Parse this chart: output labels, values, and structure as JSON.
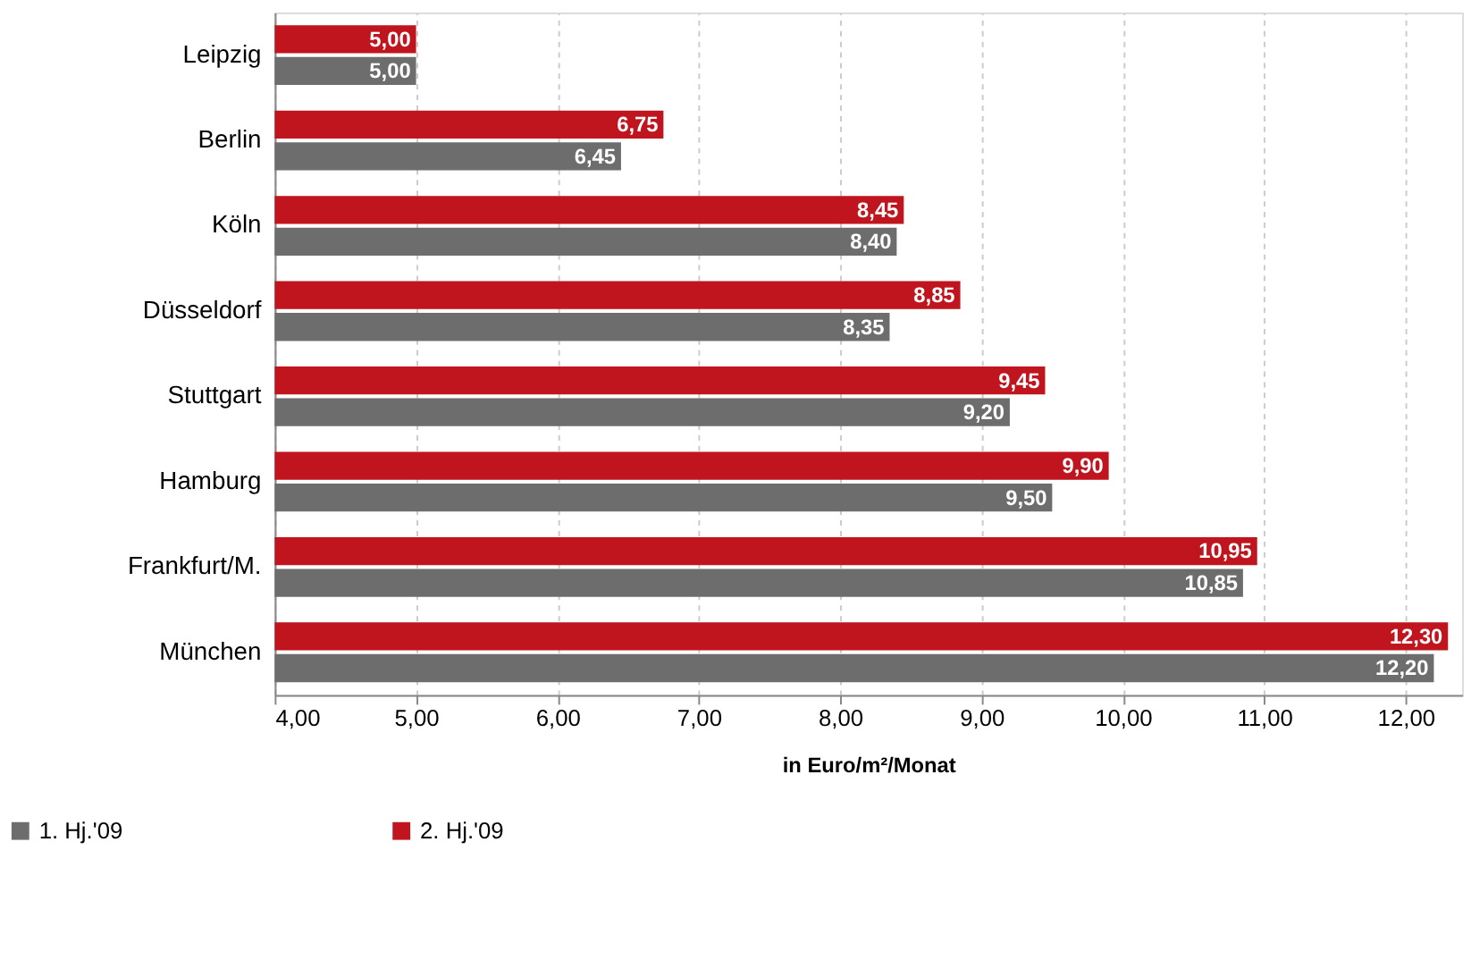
{
  "chart_data": {
    "type": "bar",
    "orientation": "horizontal",
    "xlabel": "in Euro/m²/Monat",
    "categories": [
      "Leipzig",
      "Berlin",
      "Köln",
      "Düsseldorf",
      "Stuttgart",
      "Hamburg",
      "Frankfurt/M.",
      "München"
    ],
    "series": [
      {
        "name": "1. Hj.'09",
        "color": "#6d6d6d",
        "values": [
          5.0,
          6.45,
          8.4,
          8.35,
          9.2,
          9.5,
          10.85,
          12.2
        ],
        "value_labels": [
          "5,00",
          "6,45",
          "8,40",
          "8,35",
          "9,20",
          "9,50",
          "10,85",
          "12,20"
        ]
      },
      {
        "name": "2. Hj.'09",
        "color": "#c0141e",
        "values": [
          5.0,
          6.75,
          8.45,
          8.85,
          9.45,
          9.9,
          10.95,
          12.3
        ],
        "value_labels": [
          "5,00",
          "6,75",
          "8,45",
          "8,85",
          "9,45",
          "9,90",
          "10,95",
          "12,30"
        ]
      }
    ],
    "xlim": [
      4,
      12.4
    ],
    "xticks": [
      {
        "value": 4,
        "label": "4,00"
      },
      {
        "value": 5,
        "label": "5,00"
      },
      {
        "value": 6,
        "label": "6,00"
      },
      {
        "value": 7,
        "label": "7,00"
      },
      {
        "value": 8,
        "label": "8,00"
      },
      {
        "value": 9,
        "label": "9,00"
      },
      {
        "value": 10,
        "label": "10,00"
      },
      {
        "value": 11,
        "label": "11,00"
      },
      {
        "value": 12,
        "label": "12,00"
      }
    ],
    "grid": "x",
    "legend": "bottom left"
  }
}
